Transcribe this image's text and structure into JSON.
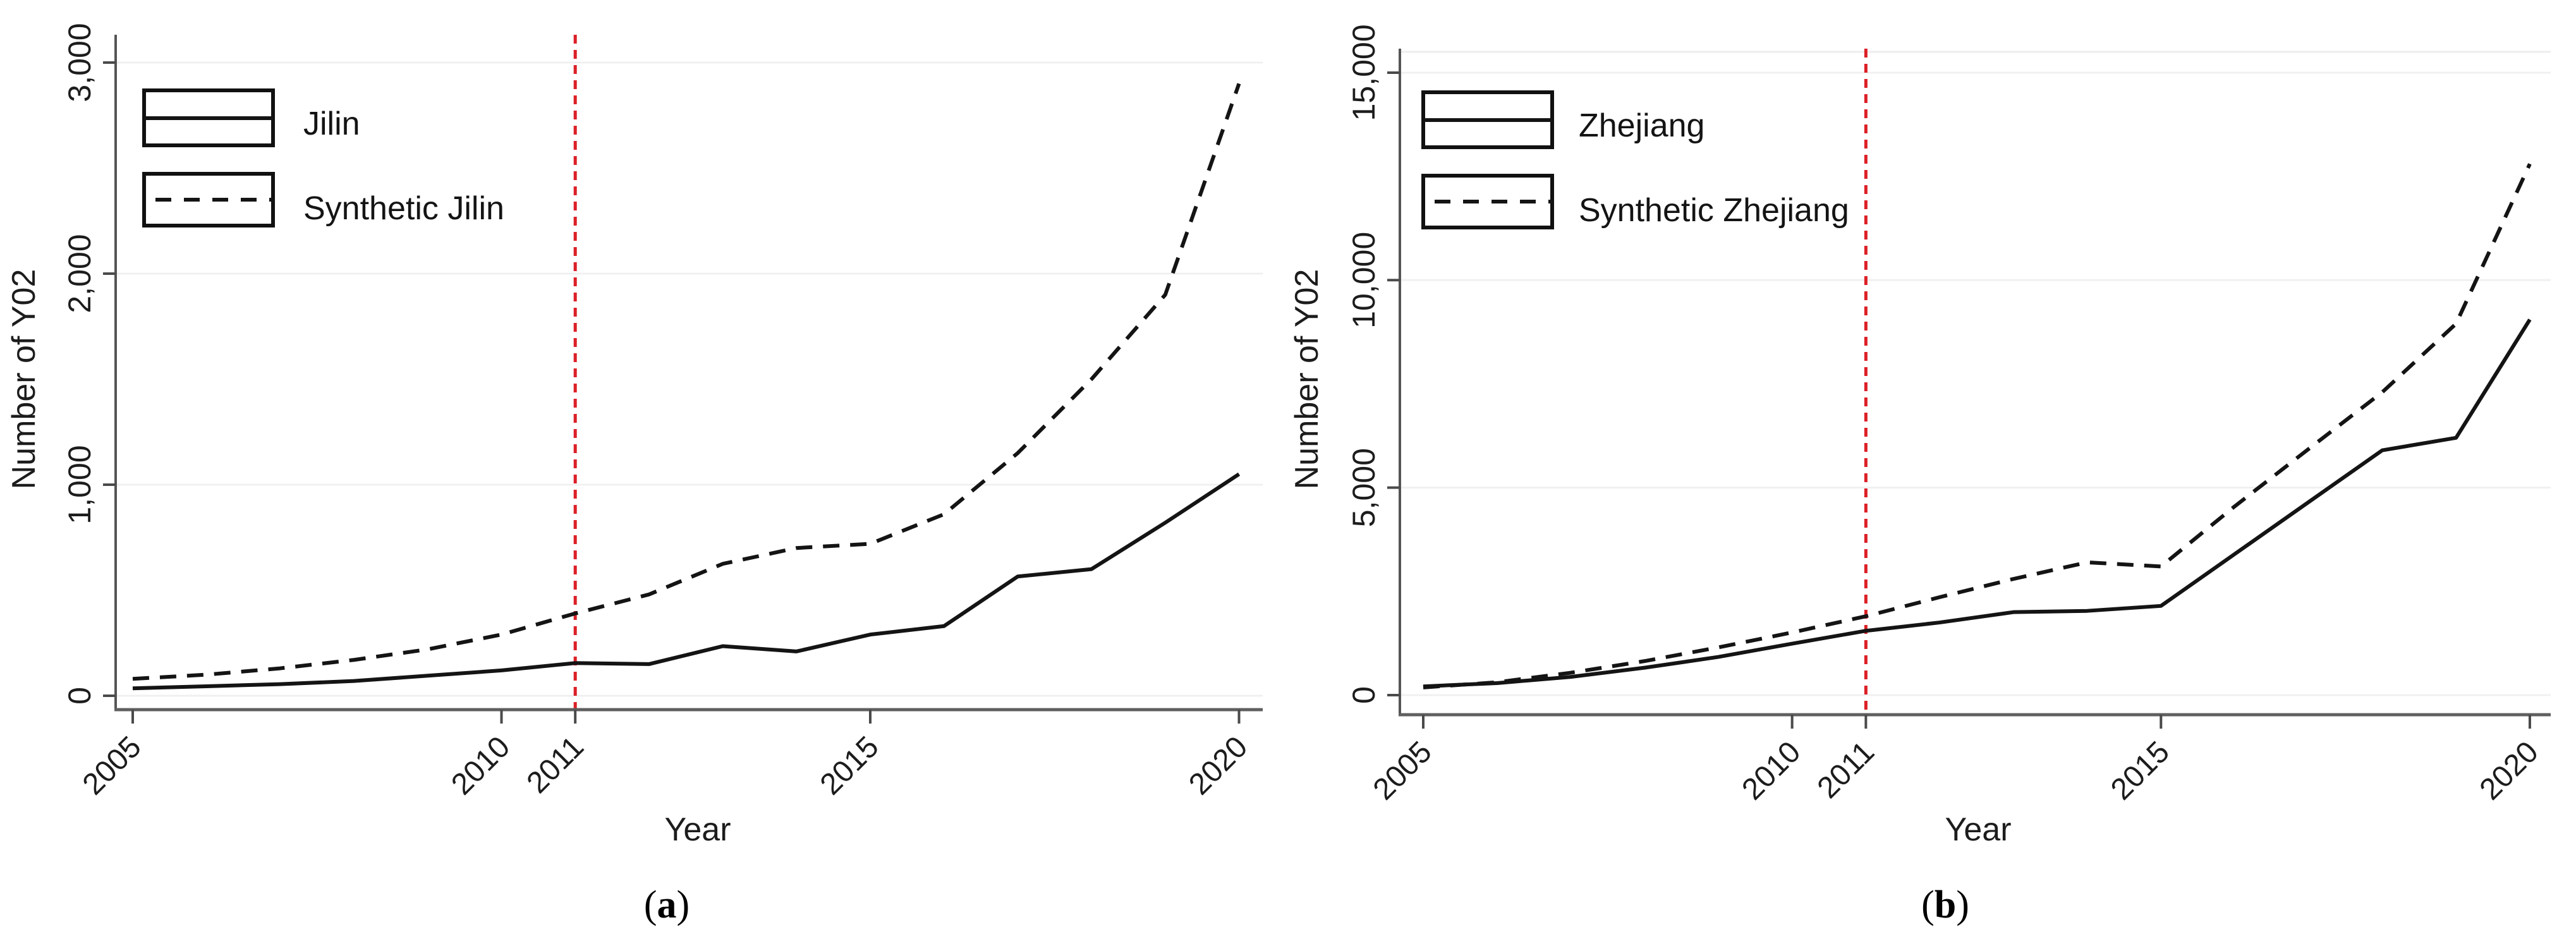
{
  "colors": {
    "background": "#ffffff",
    "series_line": "#141414",
    "treatment_line": "#dc1f26",
    "gridline": "#f0f0f0",
    "x_axis": "#5f5f5f",
    "y_axis": "#555555",
    "tick": "#4a4a4a",
    "text": "#1c1c1c",
    "legend_border": "#111111"
  },
  "chart_data": [
    {
      "type": "line",
      "panel": "a",
      "caption": [
        "(",
        "a",
        ")"
      ],
      "title": "",
      "xlabel": "Year",
      "ylabel": "Number of Y02",
      "x": [
        2005,
        2006,
        2007,
        2008,
        2009,
        2010,
        2011,
        2012,
        2013,
        2014,
        2015,
        2016,
        2017,
        2018,
        2019,
        2020
      ],
      "x_ticks": [
        2005,
        2010,
        2011,
        2015,
        2020
      ],
      "x_tick_labels": [
        "2005",
        "2010",
        "2011",
        "2015",
        "2020"
      ],
      "y_ticks": [
        0,
        1000,
        2000,
        3000
      ],
      "y_tick_labels": [
        "0",
        "1,000",
        "2,000",
        "3,000"
      ],
      "xlim": [
        2005,
        2020
      ],
      "ylim": [
        0,
        3140
      ],
      "grid": "horizontal",
      "legend_position": "top-left-inside",
      "treatment_line": {
        "x": 2011,
        "style": "dashed",
        "color": "#dc1f26"
      },
      "series": [
        {
          "name": "Jilin",
          "style": "solid",
          "color": "#141414",
          "values": [
            35,
            45,
            55,
            70,
            95,
            120,
            155,
            150,
            235,
            210,
            290,
            330,
            565,
            600,
            820,
            1050
          ]
        },
        {
          "name": "Synthetic Jilin",
          "style": "dashed",
          "color": "#141414",
          "values": [
            80,
            100,
            130,
            170,
            220,
            290,
            390,
            480,
            625,
            700,
            720,
            860,
            1150,
            1500,
            1900,
            2900
          ]
        }
      ]
    },
    {
      "type": "line",
      "panel": "b",
      "caption": [
        "(",
        "b",
        ")"
      ],
      "title": "",
      "xlabel": "Year",
      "ylabel": "Number of Y02",
      "x": [
        2005,
        2006,
        2007,
        2008,
        2009,
        2010,
        2011,
        2012,
        2013,
        2014,
        2015,
        2016,
        2017,
        2018,
        2019,
        2020
      ],
      "x_ticks": [
        2005,
        2010,
        2011,
        2015,
        2020
      ],
      "x_tick_labels": [
        "2005",
        "2010",
        "2011",
        "2015",
        "2020"
      ],
      "y_ticks": [
        0,
        5000,
        10000,
        15000
      ],
      "y_tick_labels": [
        "0",
        "5,000",
        "10,000",
        "15,000"
      ],
      "xlim": [
        2005,
        2020
      ],
      "ylim": [
        0,
        15500
      ],
      "grid": "horizontal",
      "legend_position": "top-left-inside",
      "treatment_line": {
        "x": 2011,
        "style": "dashed",
        "color": "#dc1f26"
      },
      "series": [
        {
          "name": "Zhejiang",
          "style": "solid",
          "color": "#141414",
          "values": [
            210,
            290,
            440,
            660,
            920,
            1240,
            1550,
            1750,
            2000,
            2030,
            2150,
            3400,
            4650,
            5900,
            6200,
            9050
          ]
        },
        {
          "name": "Synthetic Zhejiang",
          "style": "dashed",
          "color": "#141414",
          "values": [
            185,
            310,
            540,
            820,
            1150,
            1510,
            1900,
            2360,
            2800,
            3200,
            3100,
            4550,
            5930,
            7300,
            8950,
            12800
          ]
        }
      ]
    }
  ]
}
